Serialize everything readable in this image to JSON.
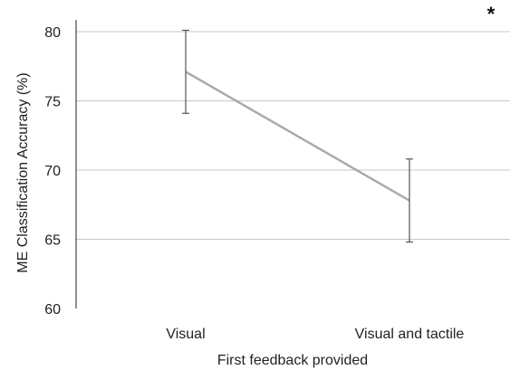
{
  "chart_data": {
    "type": "line",
    "xlabel": "First feedback provided",
    "ylabel": "ME Classification Accuracy (%)",
    "categories": [
      "Visual",
      "Visual and tactile"
    ],
    "series": [
      {
        "values": [
          77.1,
          67.8
        ],
        "error": [
          3.0,
          3.0
        ],
        "color": "#aaaaaa"
      }
    ],
    "ylim": [
      60,
      80
    ],
    "yticks": [
      "60",
      "65",
      "70",
      "75",
      "80"
    ],
    "grid": true,
    "gridline_color": "#c8c8c8",
    "errorbar_color": "#555555",
    "annotation": "*",
    "legend": "none"
  }
}
